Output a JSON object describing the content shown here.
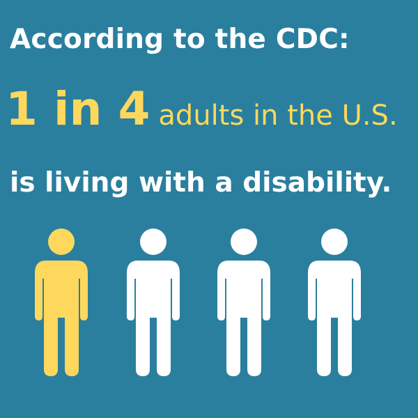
{
  "headline": {
    "intro": "According to the CDC:",
    "stat": "1 in 4",
    "stat_tail": "adults in the U.S.",
    "conclusion": "is living with a disability."
  },
  "figures": [
    {
      "icon": "person-icon",
      "highlighted": true
    },
    {
      "icon": "person-icon",
      "highlighted": false
    },
    {
      "icon": "person-icon",
      "highlighted": false
    },
    {
      "icon": "person-icon",
      "highlighted": false
    }
  ],
  "colors": {
    "background": "#2a7f9e",
    "accent": "#fdd85d",
    "text": "#ffffff"
  }
}
